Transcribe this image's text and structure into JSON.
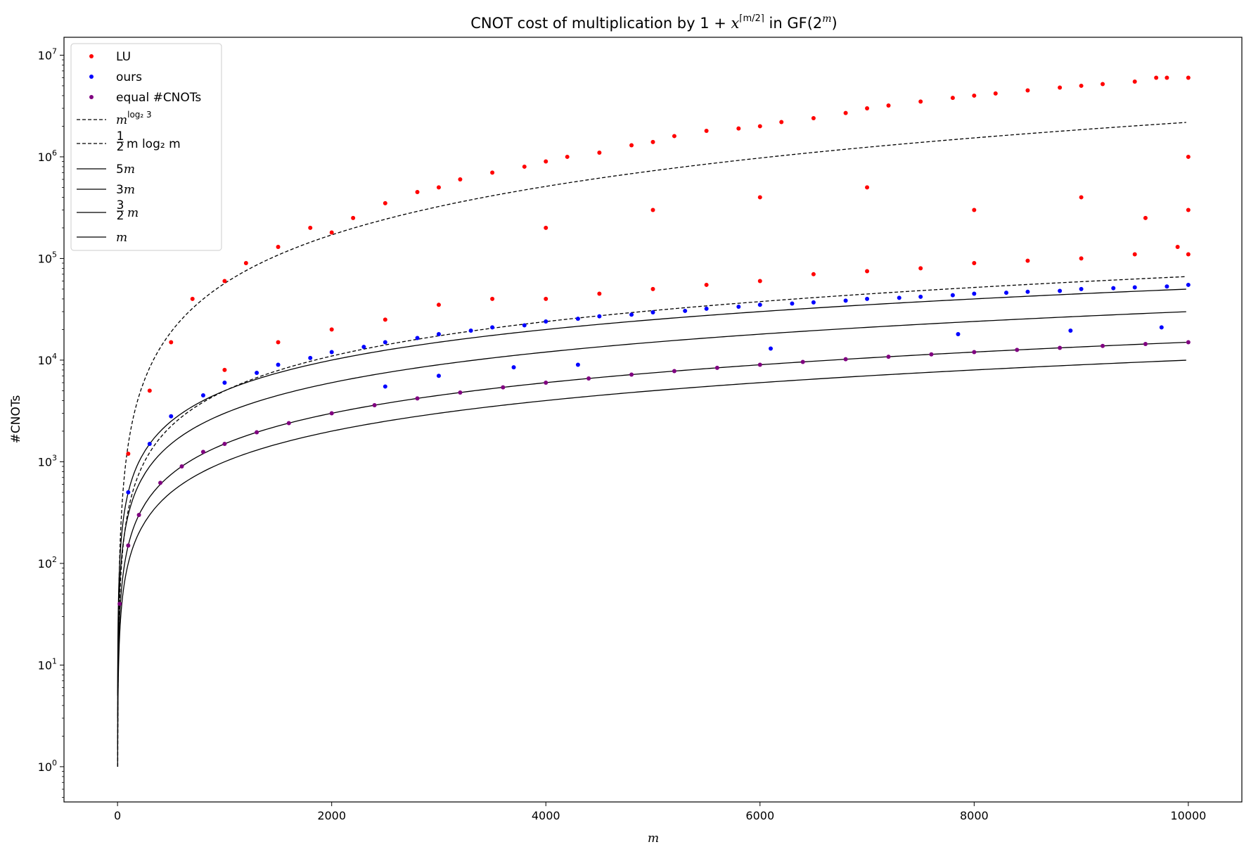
{
  "chart_data": {
    "type": "scatter",
    "title": "CNOT cost of multiplication by 1 + x^⌈m/2⌉ in GF(2^m)",
    "title_parts": {
      "pre": "CNOT cost of multiplication by ",
      "one_plus": "1 + ",
      "x": "x",
      "sup": "⌈m/2⌉",
      "mid": " in GF(2",
      "sup2": "m",
      "post": ")"
    },
    "xlabel": "m",
    "ylabel": "#CNOTs",
    "x_range": [
      -500,
      10500
    ],
    "y_scale": "log",
    "y_range": [
      0.45,
      15000000
    ],
    "x_ticks": [
      0,
      2000,
      4000,
      6000,
      8000,
      10000
    ],
    "x_tick_labels": [
      "0",
      "2000",
      "4000",
      "6000",
      "8000",
      "10000"
    ],
    "y_ticks": [
      1,
      10,
      100,
      1000,
      10000,
      100000,
      1000000,
      10000000
    ],
    "y_tick_labels": [
      {
        "base": "10",
        "exp": "0"
      },
      {
        "base": "10",
        "exp": "1"
      },
      {
        "base": "10",
        "exp": "2"
      },
      {
        "base": "10",
        "exp": "3"
      },
      {
        "base": "10",
        "exp": "4"
      },
      {
        "base": "10",
        "exp": "5"
      },
      {
        "base": "10",
        "exp": "6"
      },
      {
        "base": "10",
        "exp": "7"
      }
    ],
    "grid": false,
    "legend_position": "top-left",
    "legend": [
      {
        "label": "LU",
        "kind": "scatter",
        "color": "#ff0000"
      },
      {
        "label": "ours",
        "kind": "scatter",
        "color": "#0000ff"
      },
      {
        "label": "equal #CNOTs",
        "kind": "scatter",
        "color": "#800080"
      },
      {
        "label": "m^(log2 3)",
        "kind": "dashed",
        "color": "#000000",
        "parts": {
          "base": "m",
          "sup": "log₂ 3"
        }
      },
      {
        "label": "1/2 m log2 m",
        "kind": "dashed",
        "color": "#000000",
        "parts": {
          "num": "1",
          "den": "2",
          "rest": "m log₂ m"
        }
      },
      {
        "label": "5m",
        "kind": "solid",
        "color": "#000000",
        "parts": {
          "coef": "5",
          "var": "m"
        }
      },
      {
        "label": "3m",
        "kind": "solid",
        "color": "#000000",
        "parts": {
          "coef": "3",
          "var": "m"
        }
      },
      {
        "label": "3/2 m",
        "kind": "solid",
        "color": "#000000",
        "parts": {
          "num": "3",
          "den": "2",
          "var": "m"
        }
      },
      {
        "label": "m",
        "kind": "solid",
        "color": "#000000",
        "parts": {
          "var": "m"
        }
      }
    ],
    "series": [
      {
        "name": "LU",
        "color": "#ff0000",
        "kind": "scatter",
        "x": [
          100,
          300,
          500,
          700,
          1000,
          1000,
          1200,
          1500,
          1500,
          1800,
          2000,
          2000,
          2200,
          2500,
          2500,
          2800,
          3000,
          3000,
          3200,
          3500,
          3500,
          3800,
          4000,
          4000,
          4000,
          4200,
          4500,
          4500,
          4800,
          5000,
          5000,
          5000,
          5200,
          5500,
          5500,
          5800,
          6000,
          6000,
          6000,
          6200,
          6500,
          6500,
          6800,
          7000,
          7000,
          7000,
          7200,
          7500,
          7500,
          7800,
          8000,
          8000,
          8000,
          8200,
          8500,
          8500,
          8800,
          9000,
          9000,
          9000,
          9200,
          9500,
          9500,
          9700,
          9800,
          10000,
          10000,
          10000,
          10000,
          9900,
          9600
        ],
        "y": [
          1200,
          5000,
          15000,
          40000,
          60000,
          8000,
          90000,
          130000,
          15000,
          200000,
          180000,
          20000,
          250000,
          350000,
          25000,
          450000,
          500000,
          35000,
          600000,
          700000,
          40000,
          800000,
          900000,
          40000,
          200000,
          1000000,
          1100000,
          45000,
          1300000,
          1400000,
          50000,
          300000,
          1600000,
          1800000,
          55000,
          1900000,
          2000000,
          60000,
          400000,
          2200000,
          2400000,
          70000,
          2700000,
          3000000,
          75000,
          500000,
          3200000,
          3500000,
          80000,
          3800000,
          4000000,
          90000,
          300000,
          4200000,
          4500000,
          95000,
          4800000,
          5000000,
          100000,
          400000,
          5200000,
          5500000,
          110000,
          6000000,
          6000000,
          6000000,
          110000,
          1000000,
          300000,
          130000,
          250000
        ]
      },
      {
        "name": "ours",
        "color": "#0000ff",
        "kind": "scatter",
        "x": [
          100,
          300,
          500,
          800,
          1000,
          1300,
          1500,
          1800,
          2000,
          2300,
          2500,
          2800,
          3000,
          3300,
          3500,
          3800,
          4000,
          4300,
          4500,
          4800,
          5000,
          5300,
          5500,
          5800,
          6000,
          6300,
          6500,
          6800,
          7000,
          7300,
          7500,
          7800,
          8000,
          8300,
          8500,
          8800,
          9000,
          9300,
          9500,
          9800,
          10000,
          3000,
          4300,
          6100,
          7850,
          8900,
          9750,
          2500,
          3700
        ],
        "y": [
          500,
          1500,
          2800,
          4500,
          6000,
          7500,
          9000,
          10500,
          12000,
          13500,
          15000,
          16500,
          18000,
          19500,
          21000,
          22000,
          24000,
          25500,
          27000,
          28000,
          29500,
          30500,
          32000,
          33500,
          35000,
          36000,
          37000,
          38500,
          40000,
          41000,
          42000,
          43500,
          45000,
          46000,
          47000,
          48000,
          50000,
          51000,
          52000,
          53000,
          55000,
          7000,
          9000,
          13000,
          18000,
          19500,
          21000,
          5500,
          8500
        ]
      },
      {
        "name": "equal #CNOTs",
        "color": "#800080",
        "kind": "scatter",
        "x": [
          20,
          100,
          200,
          400,
          600,
          800,
          1000,
          1300,
          1600,
          2000,
          2400,
          2800,
          3200,
          3600,
          4000,
          4400,
          4800,
          5200,
          5600,
          6000,
          6400,
          6800,
          7200,
          7600,
          8000,
          8400,
          8800,
          9200,
          9600,
          10000
        ],
        "y": [
          40,
          150,
          300,
          620,
          900,
          1250,
          1500,
          1950,
          2400,
          3000,
          3600,
          4200,
          4800,
          5400,
          6000,
          6600,
          7200,
          7800,
          8400,
          9000,
          9600,
          10200,
          10800,
          11400,
          12000,
          12600,
          13200,
          13800,
          14400,
          15000
        ]
      }
    ],
    "reference_curves": [
      "m^(log2 3)",
      "1/2 m log2 m",
      "5m",
      "3m",
      "3/2 m",
      "m"
    ]
  }
}
